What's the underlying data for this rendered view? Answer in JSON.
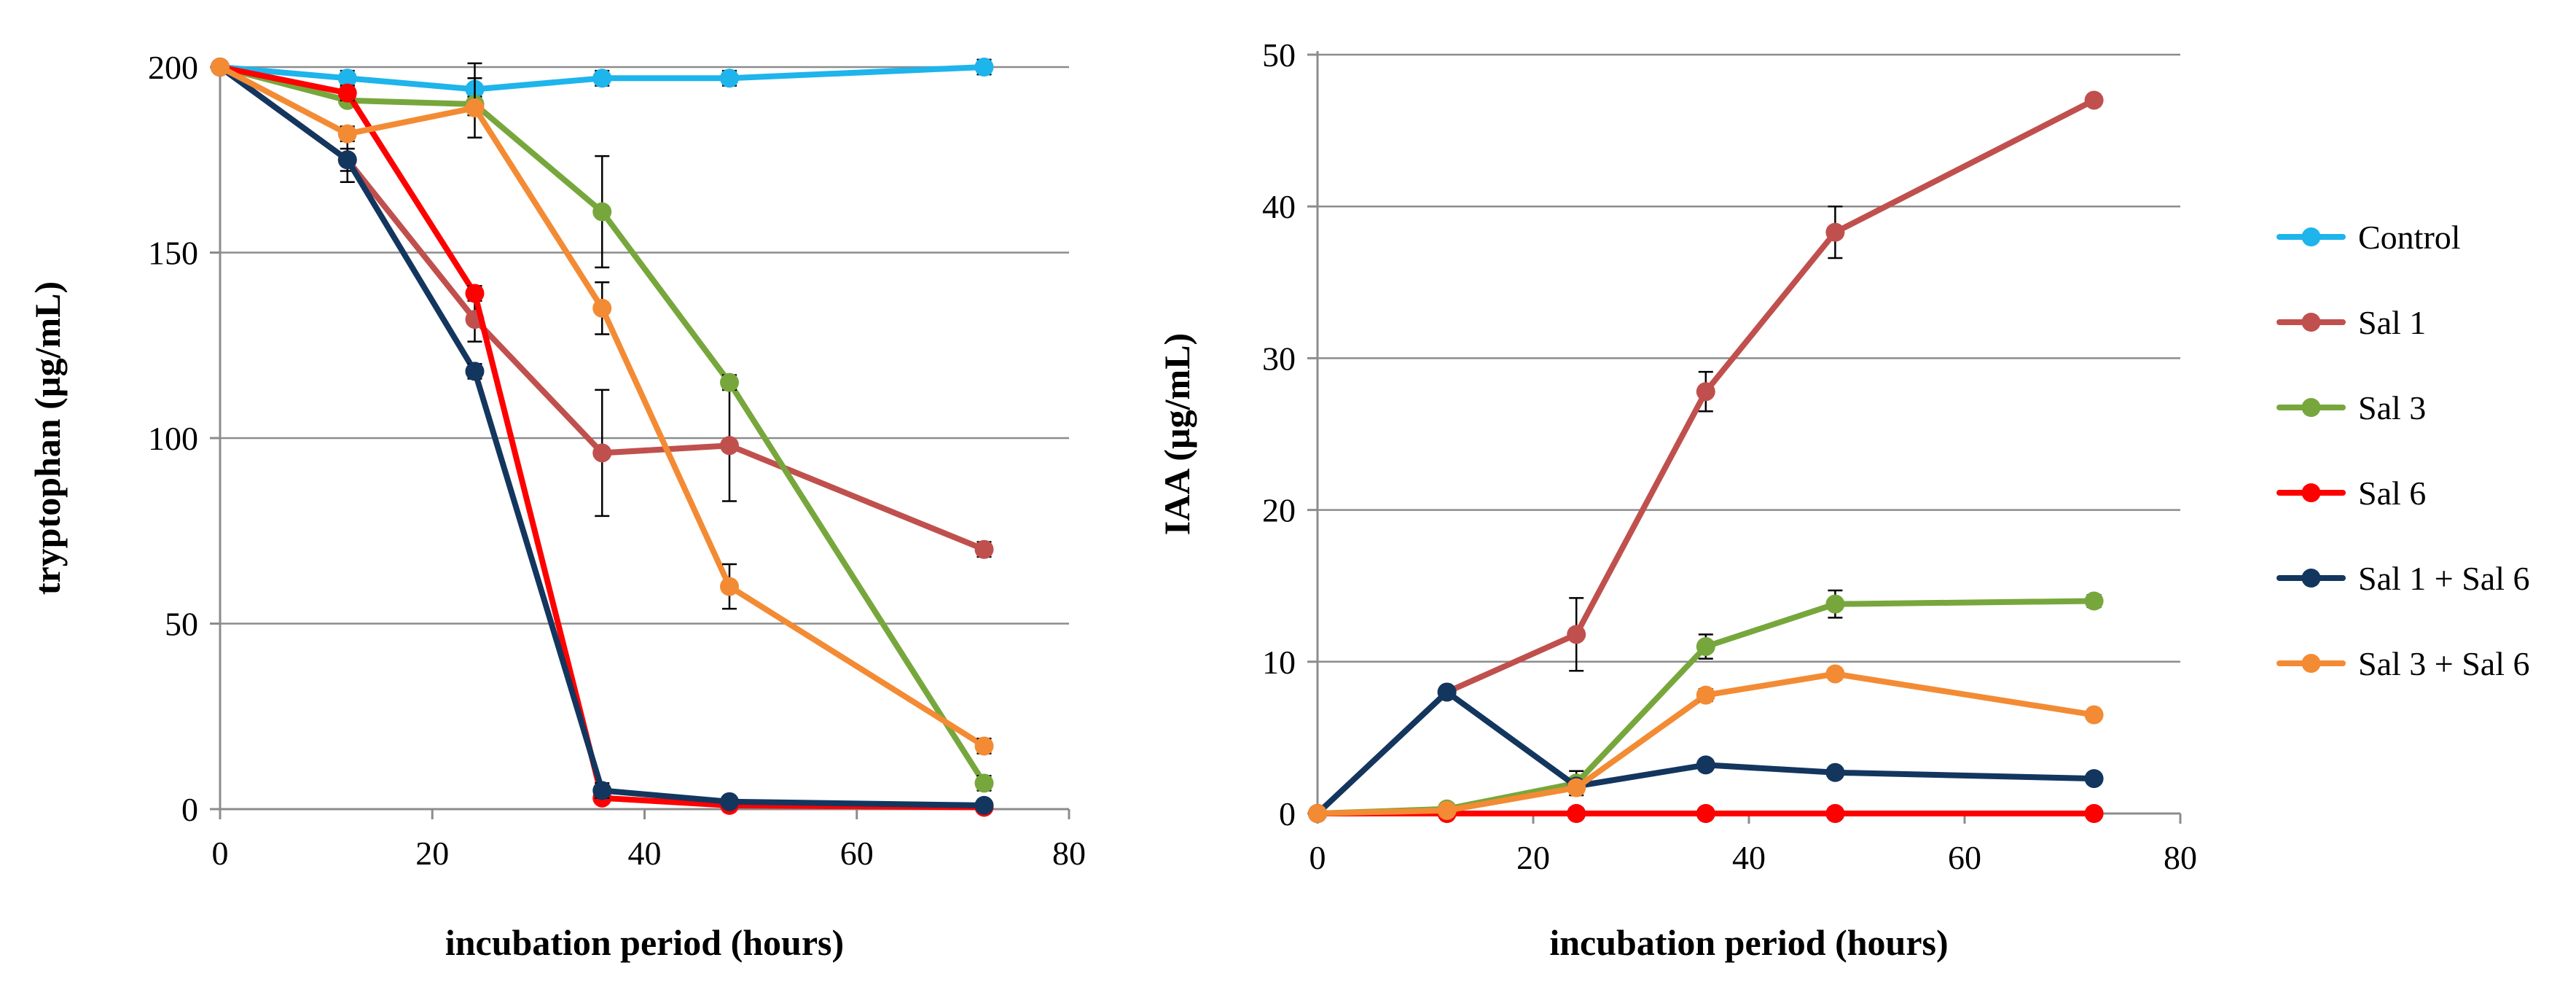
{
  "chart_data": [
    {
      "type": "line",
      "title": "",
      "xlabel": "incubation period (hours)",
      "ylabel": "tryptophan (µg/mL)",
      "xlim": [
        0,
        80
      ],
      "ylim": [
        0,
        200
      ],
      "xticks": [
        0,
        20,
        40,
        60,
        80
      ],
      "yticks": [
        0,
        50,
        100,
        150,
        200
      ],
      "grid": "horizontal",
      "x": [
        0,
        12,
        24,
        36,
        48,
        72
      ],
      "series": [
        {
          "name": "Control",
          "color": "#1eb4ec",
          "values": [
            200,
            197,
            194,
            197,
            197,
            200
          ],
          "errors": [
            0,
            2,
            7,
            2,
            2,
            2
          ]
        },
        {
          "name": "Sal 1",
          "color": "#c0504d",
          "values": [
            200,
            175,
            132,
            96,
            98,
            70
          ],
          "errors": [
            0,
            3,
            6,
            17,
            15,
            2
          ]
        },
        {
          "name": "Sal 3",
          "color": "#77a73c",
          "values": [
            200,
            191,
            190,
            161,
            115,
            7
          ],
          "errors": [
            0,
            1,
            2,
            15,
            2,
            2
          ]
        },
        {
          "name": "Sal 6",
          "color": "#ff0000",
          "values": [
            200,
            193,
            139,
            3,
            1,
            0.5
          ],
          "errors": [
            0,
            2,
            2,
            1,
            1,
            0.5
          ]
        },
        {
          "name": "Sal 1 + Sal 6",
          "color": "#13365f",
          "values": [
            200,
            175,
            118,
            5,
            2,
            1
          ],
          "errors": [
            0,
            6,
            2,
            2,
            1,
            1
          ]
        },
        {
          "name": "Sal 3 + Sal 6",
          "color": "#f38b34",
          "values": [
            200,
            182,
            189,
            135,
            60,
            17
          ],
          "errors": [
            0,
            2,
            8,
            7,
            6,
            2
          ]
        }
      ]
    },
    {
      "type": "line",
      "title": "",
      "xlabel": "incubation period (hours)",
      "ylabel": "IAA (µg/mL)",
      "xlim": [
        0,
        80
      ],
      "ylim": [
        0,
        50
      ],
      "xticks": [
        0,
        20,
        40,
        60,
        80
      ],
      "yticks": [
        0,
        10,
        20,
        30,
        40,
        50
      ],
      "grid": "horizontal",
      "x": [
        0,
        12,
        24,
        36,
        48,
        72
      ],
      "series": [
        {
          "name": "Control",
          "color": "#1eb4ec",
          "values": [
            0,
            0,
            0,
            0,
            0,
            0
          ],
          "errors": [
            0,
            0,
            0,
            0,
            0,
            0
          ]
        },
        {
          "name": "Sal 1",
          "color": "#c0504d",
          "values": [
            0,
            8,
            11.8,
            27.8,
            38.3,
            47
          ],
          "errors": [
            0,
            0.3,
            2.4,
            1.3,
            1.7,
            0.3
          ]
        },
        {
          "name": "Sal 3",
          "color": "#77a73c",
          "values": [
            0,
            0.3,
            2,
            11,
            13.8,
            14
          ],
          "errors": [
            0,
            0.1,
            0.8,
            0.8,
            0.9,
            0.4
          ]
        },
        {
          "name": "Sal 6",
          "color": "#ff0000",
          "values": [
            0,
            0,
            0,
            0,
            0,
            0
          ],
          "errors": [
            0,
            0,
            0,
            0,
            0,
            0
          ]
        },
        {
          "name": "Sal 1 + Sal 6",
          "color": "#13365f",
          "values": [
            0,
            8,
            1.8,
            3.2,
            2.7,
            2.3
          ],
          "errors": [
            0,
            0.3,
            0.3,
            0.3,
            0.2,
            0.2
          ]
        },
        {
          "name": "Sal 3 + Sal 6",
          "color": "#f38b34",
          "values": [
            0,
            0.2,
            1.7,
            7.8,
            9.2,
            6.5
          ],
          "errors": [
            0,
            0.1,
            0.3,
            0.4,
            0.3,
            0.3
          ]
        }
      ]
    }
  ],
  "legend": {
    "position": "right",
    "items": [
      {
        "name": "Control",
        "color": "#1eb4ec"
      },
      {
        "name": "Sal 1",
        "color": "#c0504d"
      },
      {
        "name": "Sal 3",
        "color": "#77a73c"
      },
      {
        "name": "Sal 6",
        "color": "#ff0000"
      },
      {
        "name": "Sal 1 + Sal 6",
        "color": "#13365f"
      },
      {
        "name": "Sal 3 + Sal 6",
        "color": "#f38b34"
      }
    ]
  }
}
